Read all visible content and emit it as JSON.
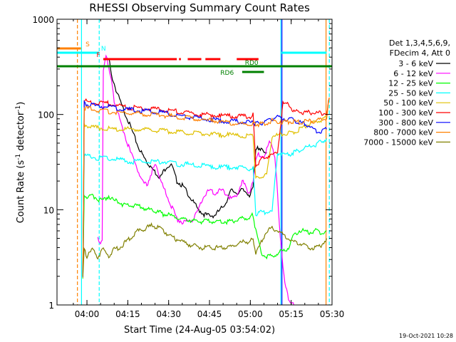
{
  "chart_data": {
    "type": "line",
    "title": "RHESSI Observing Summary Count Rates",
    "xlabel": "Start Time (24-Aug-05 03:54:02)",
    "ylabel_parts": [
      "Count Rate (s",
      "-1",
      " detector",
      "-1",
      ")"
    ],
    "yscale": "log",
    "ylim": [
      1,
      1000
    ],
    "xlim_minutes": [
      -5.0,
      96.0
    ],
    "x_tick_values": [
      6,
      21,
      36,
      51,
      66,
      81,
      96
    ],
    "x_tick_labels": [
      "04:00",
      "04:15",
      "04:30",
      "04:45",
      "05:00",
      "05:15",
      "05:30"
    ],
    "y_tick_values": [
      1,
      10,
      100,
      1000
    ],
    "y_tick_labels": [
      "1",
      "10",
      "100",
      "1000"
    ],
    "timestamp": "19-Oct-2021 10:28",
    "legend_header": [
      "Det 1,3,4,5,6,9,",
      "FDecim 4, Att 0"
    ],
    "series": [
      {
        "name": "3 - 6 keV",
        "color": "#000000",
        "x": [
          14,
          15,
          17,
          19,
          21,
          23,
          25,
          27,
          28,
          30,
          31.5,
          33,
          35,
          37,
          39,
          41,
          43,
          45,
          47,
          49,
          51,
          53,
          55,
          57,
          59,
          61,
          63,
          65,
          66,
          67,
          68,
          69,
          70,
          71,
          72
        ],
        "y": [
          390,
          260,
          170,
          120,
          88,
          62,
          45,
          35,
          32,
          27,
          24,
          22,
          28,
          30,
          20,
          18,
          15,
          12,
          10,
          9,
          8.6,
          8.8,
          10,
          12,
          16,
          15,
          16,
          15,
          14,
          18,
          42,
          45,
          43,
          41,
          40
        ]
      },
      {
        "name": "6 - 12 keV",
        "color": "#ff00ff",
        "x": [
          10,
          11,
          11.6,
          12,
          13,
          14,
          15,
          16,
          18,
          20,
          22,
          24,
          26,
          28,
          30,
          31.5,
          33,
          35,
          37,
          39,
          41,
          43,
          45,
          47,
          49,
          51,
          53,
          55,
          57,
          59,
          61,
          63,
          65,
          66,
          67,
          68,
          69,
          70,
          71,
          72,
          73,
          74,
          75,
          76,
          77,
          78,
          79,
          80,
          81,
          82
        ],
        "y": [
          5,
          4.5,
          4.5,
          300,
          400,
          320,
          230,
          140,
          90,
          60,
          40,
          30,
          20,
          18,
          26,
          30,
          20,
          15,
          11,
          8,
          7.5,
          7.5,
          8,
          10,
          14,
          16,
          15,
          16,
          15,
          13,
          14,
          20,
          16,
          15,
          20,
          32,
          38,
          36,
          34,
          45,
          50,
          48,
          35,
          15,
          5,
          2.5,
          1.5,
          1.2,
          1,
          1
        ]
      },
      {
        "name": "12 - 25 keV",
        "color": "#00ff00",
        "x": [
          4.5,
          5,
          6,
          8,
          10,
          12,
          14,
          16,
          18,
          20,
          22,
          24,
          26,
          28,
          30,
          32,
          34,
          36,
          38,
          40,
          42,
          44,
          46,
          48,
          50,
          52,
          54,
          56,
          58,
          60,
          62,
          64,
          66,
          67,
          68,
          70,
          72,
          74,
          76,
          78,
          80,
          82,
          84,
          86,
          88,
          90,
          92,
          94
        ],
        "y": [
          2,
          14,
          13.5,
          14,
          13,
          12.5,
          14,
          12.5,
          12,
          11,
          11,
          11,
          11,
          10,
          10,
          9.5,
          9,
          8.8,
          8.5,
          8,
          8,
          7.8,
          7.5,
          7.5,
          7.6,
          7.6,
          7.5,
          7.5,
          7.5,
          7.6,
          8,
          8.2,
          8.5,
          8.8,
          6,
          3.5,
          3.2,
          3.3,
          3.5,
          3.7,
          4,
          5.5,
          6,
          6,
          5.8,
          6,
          5.8,
          6
        ]
      },
      {
        "name": "25 - 50 keV",
        "color": "#00ffff",
        "x": [
          4.5,
          5,
          7,
          10,
          13,
          16,
          19,
          22,
          25,
          28,
          31,
          34,
          37,
          40,
          43,
          46,
          49,
          52,
          55,
          58,
          61,
          64,
          66,
          67,
          68,
          70,
          72,
          74,
          76,
          78,
          80,
          82,
          84,
          86,
          88,
          90,
          92,
          94
        ],
        "y": [
          2,
          37,
          36,
          35,
          35,
          34,
          33,
          32,
          32,
          32,
          32,
          32,
          31,
          30,
          30,
          29,
          29,
          28,
          28,
          28,
          28,
          27,
          27,
          28,
          9,
          9.5,
          9.5,
          9.5,
          40,
          38,
          38,
          40,
          42,
          44,
          46,
          48,
          52,
          56
        ]
      },
      {
        "name": "50 - 100 keV",
        "color": "#e0c000",
        "x": [
          4.5,
          5,
          7,
          10,
          13,
          16,
          19,
          22,
          25,
          28,
          31,
          34,
          37,
          40,
          43,
          46,
          49,
          52,
          55,
          58,
          61,
          64,
          66,
          67,
          68,
          70,
          72,
          74,
          76,
          78,
          80,
          82,
          84,
          86,
          88,
          90,
          92,
          94
        ],
        "y": [
          2,
          80,
          75,
          72,
          72,
          70,
          70,
          70,
          70,
          69,
          68,
          68,
          66,
          65,
          64,
          63,
          63,
          62,
          61,
          61,
          60,
          59,
          59,
          60,
          21,
          22,
          23,
          60,
          60,
          62,
          64,
          66,
          70,
          75,
          80,
          84,
          88,
          92
        ]
      },
      {
        "name": "100 - 300 keV",
        "color": "#ff0000",
        "x": [
          4.5,
          5,
          7,
          10,
          13,
          16,
          19,
          22,
          25,
          28,
          31,
          34,
          37,
          40,
          43,
          46,
          49,
          52,
          55,
          58,
          61,
          64,
          66,
          67,
          68,
          70,
          72,
          74,
          76,
          78,
          80,
          82,
          84,
          86,
          88,
          90,
          92,
          94,
          95
        ],
        "y": [
          2,
          140,
          135,
          130,
          132,
          125,
          120,
          118,
          118,
          116,
          115,
          112,
          110,
          108,
          105,
          102,
          100,
          98,
          97,
          96,
          96,
          95,
          95,
          100,
          30,
          33,
          36,
          38,
          40,
          130,
          128,
          108,
          106,
          106,
          104,
          104,
          103,
          105,
          150
        ]
      },
      {
        "name": "300 - 800 keV",
        "color": "#0000ff",
        "x": [
          4.5,
          5,
          7,
          10,
          13,
          16,
          19,
          22,
          25,
          28,
          31,
          34,
          37,
          40,
          43,
          46,
          49,
          52,
          55,
          58,
          61,
          64,
          66,
          67,
          68,
          70,
          72,
          74,
          76,
          78,
          80,
          82,
          84,
          86,
          88,
          90,
          92,
          94
        ],
        "y": [
          2,
          130,
          125,
          122,
          122,
          118,
          115,
          112,
          110,
          108,
          106,
          104,
          100,
          97,
          95,
          92,
          90,
          88,
          86,
          85,
          85,
          83,
          82,
          83,
          80,
          82,
          84,
          90,
          95,
          92,
          90,
          88,
          82,
          80,
          75,
          68,
          66,
          70
        ]
      },
      {
        "name": "800 - 7000 keV",
        "color": "#ff8000",
        "x": [
          4.5,
          5,
          7,
          10,
          13,
          16,
          19,
          22,
          25,
          28,
          31,
          34,
          37,
          40,
          43,
          46,
          49,
          52,
          55,
          58,
          61,
          64,
          66,
          67,
          68,
          70,
          72,
          74,
          76,
          78,
          80,
          82,
          84,
          86,
          88,
          90,
          92,
          94,
          95
        ],
        "y": [
          2,
          118,
          115,
          110,
          108,
          105,
          104,
          103,
          102,
          101,
          100,
          98,
          96,
          94,
          92,
          90,
          88,
          86,
          84,
          82,
          80,
          79,
          78,
          79,
          78,
          80,
          82,
          86,
          85,
          84,
          84,
          84,
          83,
          84,
          85,
          86,
          88,
          92,
          150
        ]
      },
      {
        "name": "7000 - 15000 keV",
        "color": "#808000",
        "x": [
          4.5,
          5,
          6,
          8,
          10,
          12,
          14,
          16,
          18,
          20,
          22,
          24,
          26,
          28,
          30,
          32,
          34,
          36,
          38,
          40,
          42,
          44,
          46,
          48,
          50,
          52,
          54,
          56,
          58,
          60,
          62,
          64,
          66,
          67,
          68,
          70,
          72,
          74,
          76,
          78,
          80,
          82,
          84,
          86,
          88,
          90,
          92,
          94
        ],
        "y": [
          2,
          3.8,
          3.2,
          3.8,
          3.2,
          3.8,
          3.3,
          3.8,
          4,
          4.5,
          5,
          5.8,
          6.2,
          6.5,
          6.8,
          6.5,
          6,
          5.5,
          5,
          4.8,
          4.5,
          4.3,
          4.2,
          4,
          4,
          4,
          4,
          4,
          4,
          4.2,
          4.5,
          4.6,
          4.7,
          5,
          3.5,
          4.5,
          6,
          6.3,
          6,
          5.5,
          5,
          4.5,
          4.5,
          4.2,
          4,
          4,
          4.2,
          5
        ]
      }
    ],
    "flag_bars": [
      {
        "label": "S",
        "color": "#ff8000",
        "intervals": [
          [
            -5,
            3.8
          ]
        ],
        "label_at": 5.5,
        "level": 41
      },
      {
        "label": "N",
        "color": "#00ffff",
        "intervals": [
          [
            -5,
            10.5
          ],
          [
            77.5,
            94
          ]
        ],
        "label_at": 11.2,
        "level": 47
      },
      {
        "label": "F",
        "color": "#ff0000",
        "intervals": [
          [
            12,
            39
          ],
          [
            39.8,
            40.5
          ],
          [
            43,
            48
          ],
          [
            49.5,
            55
          ],
          [
            61,
            69
          ]
        ],
        "label_at": 9.5,
        "level": 56
      },
      {
        "label": "RD0",
        "color": "#008000",
        "intervals": [
          [
            -5,
            96
          ]
        ],
        "label_at": 64,
        "level": 66
      },
      {
        "label": "RD6",
        "color": "#008000",
        "intervals": [
          [
            63,
            71
          ]
        ],
        "label_at": 55,
        "level": 74
      }
    ],
    "vertical_markers": [
      {
        "x": 2.5,
        "color": "#ff8000",
        "style": "dashed"
      },
      {
        "x": 4.0,
        "color": "#00ffff",
        "style": "solid"
      },
      {
        "x": 10.5,
        "color": "#00ffff",
        "style": "dashed"
      },
      {
        "x": 77.2,
        "color": "#00ffff",
        "style": "solid"
      },
      {
        "x": 77.6,
        "color": "#0000ff",
        "style": "solid"
      },
      {
        "x": 93.8,
        "color": "#ff8000",
        "style": "solid"
      },
      {
        "x": 95.0,
        "color": "#00ffff",
        "style": "dashed"
      }
    ]
  }
}
